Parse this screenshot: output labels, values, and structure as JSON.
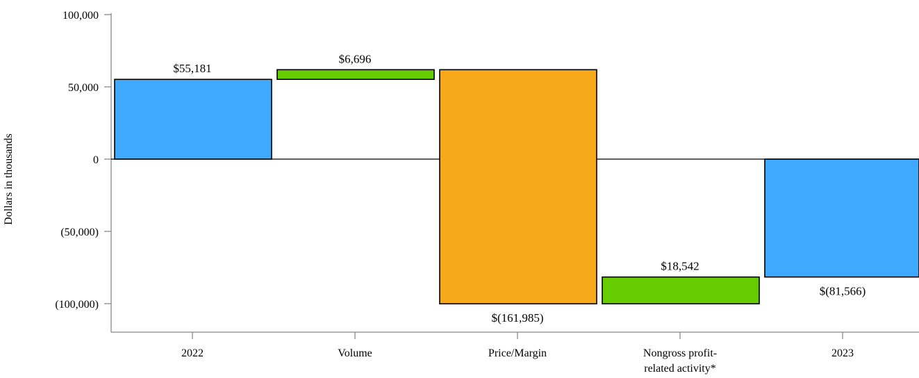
{
  "chart_data": {
    "type": "bar",
    "subtype": "waterfall",
    "ylabel": "Dollars in thousands",
    "ylim": [
      -120000,
      105000
    ],
    "yticks": [
      {
        "value": 100000,
        "label": "100,000"
      },
      {
        "value": 50000,
        "label": "50,000"
      },
      {
        "value": 0,
        "label": "0"
      },
      {
        "value": -50000,
        "label": "(50,000)"
      },
      {
        "value": -100000,
        "label": "(100,000)"
      }
    ],
    "categories": [
      {
        "lines": [
          "2022"
        ]
      },
      {
        "lines": [
          "Volume"
        ]
      },
      {
        "lines": [
          "Price/Margin"
        ]
      },
      {
        "lines": [
          "Nongross profit-",
          "related activity*"
        ]
      },
      {
        "lines": [
          "2023"
        ]
      }
    ],
    "steps": [
      {
        "kind": "total",
        "value": 55181,
        "label": "$55,181",
        "color": "#3fa9ff"
      },
      {
        "kind": "delta",
        "value": 6696,
        "label": "$6,696",
        "color": "#66cc00"
      },
      {
        "kind": "delta",
        "value": -161985,
        "label": "$(161,985)",
        "color": "#f7a81b"
      },
      {
        "kind": "delta",
        "value": 18542,
        "label": "$18,542",
        "color": "#66cc00"
      },
      {
        "kind": "total",
        "value": -81566,
        "label": "$(81,566)",
        "color": "#3fa9ff"
      }
    ],
    "grid": false,
    "legend": "none"
  }
}
